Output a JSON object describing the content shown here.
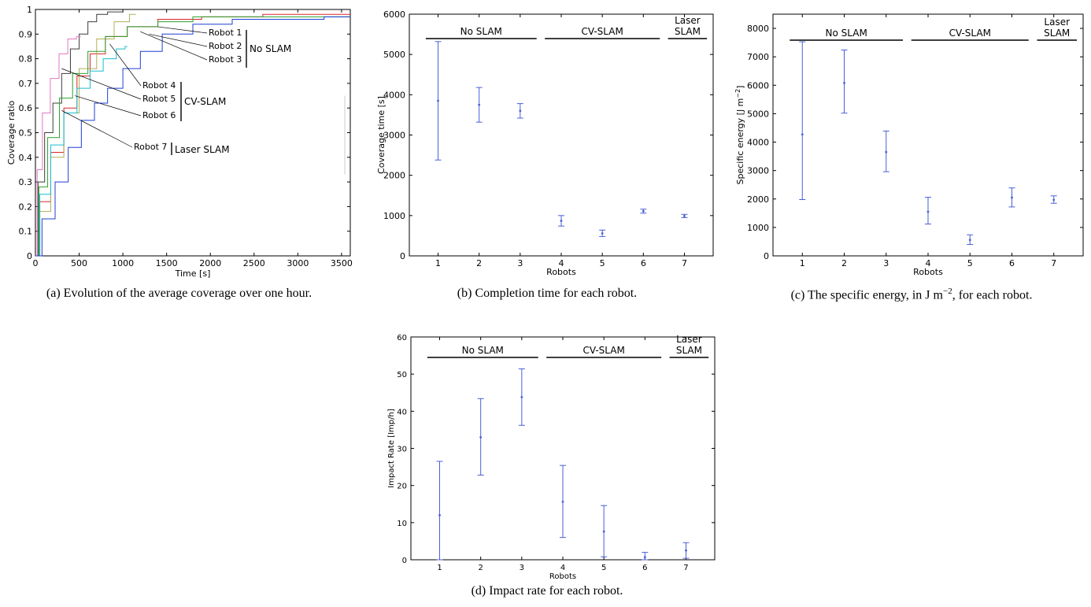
{
  "panels": [
    {
      "id": "a",
      "caption": "(a) Evolution of the average coverage over one hour.",
      "chart_data": {
        "type": "line",
        "xlabel": "Time [s]",
        "ylabel": "Coverage ratio",
        "xlim": [
          0,
          3600
        ],
        "ylim": [
          0,
          1
        ],
        "x_ticks": [
          "0",
          "500",
          "1000",
          "1500",
          "2000",
          "2500",
          "3000",
          "3500"
        ],
        "y_ticks": [
          "0",
          "0.1",
          "0.2",
          "0.3",
          "0.4",
          "0.5",
          "0.6",
          "0.7",
          "0.8",
          "0.9",
          "1"
        ],
        "grid": false,
        "series": [
          {
            "name": "Robot 1",
            "color": "#3c3c3c",
            "x": [
              0,
              60,
              150,
              250,
              350,
              450,
              550,
              650,
              750,
              900,
              1000
            ],
            "y": [
              0,
              0.3,
              0.5,
              0.62,
              0.74,
              0.84,
              0.9,
              0.95,
              0.98,
              0.99,
              0.99
            ]
          },
          {
            "name": "Robot 2",
            "color": "#d62728",
            "x": [
              0,
              100,
              250,
              400,
              550,
              700,
              900,
              1200,
              1600,
              2200,
              3000,
              3600
            ],
            "y": [
              0,
              0.22,
              0.42,
              0.6,
              0.73,
              0.82,
              0.89,
              0.93,
              0.96,
              0.97,
              0.98,
              0.98
            ]
          },
          {
            "name": "Robot 3",
            "color": "#b0b05a",
            "x": [
              0,
              100,
              250,
              400,
              600,
              800,
              1000,
              1150
            ],
            "y": [
              0,
              0.18,
              0.4,
              0.58,
              0.76,
              0.88,
              0.95,
              0.98
            ]
          },
          {
            "name": "Robot 4",
            "color": "#2ca02c",
            "x": [
              0,
              80,
              200,
              350,
              500,
              700,
              900,
              1200,
              1600,
              2000,
              2500,
              3600
            ],
            "y": [
              0,
              0.28,
              0.48,
              0.64,
              0.74,
              0.83,
              0.89,
              0.93,
              0.95,
              0.97,
              0.97,
              0.97
            ]
          },
          {
            "name": "Robot 5",
            "color": "#e377c2",
            "x": [
              0,
              40,
              120,
              220,
              320,
              420,
              520
            ],
            "y": [
              0,
              0.35,
              0.58,
              0.72,
              0.82,
              0.88,
              0.89
            ]
          },
          {
            "name": "Robot 6",
            "color": "#17becf",
            "x": [
              0,
              100,
              250,
              400,
              550,
              700,
              850,
              1000,
              1050
            ],
            "y": [
              0,
              0.25,
              0.45,
              0.58,
              0.68,
              0.75,
              0.8,
              0.84,
              0.85
            ]
          },
          {
            "name": "Robot 7",
            "color": "#1f3fd6",
            "x": [
              0,
              150,
              300,
              450,
              600,
              750,
              900,
              1100,
              1300,
              1600,
              2000,
              2500,
              3000,
              3600
            ],
            "y": [
              0,
              0.15,
              0.3,
              0.44,
              0.55,
              0.62,
              0.68,
              0.76,
              0.83,
              0.9,
              0.94,
              0.96,
              0.96,
              0.97
            ]
          }
        ],
        "annotations": [
          {
            "labels": [
              "Robot 1",
              "Robot 2",
              "Robot 3"
            ],
            "group": "No SLAM"
          },
          {
            "labels": [
              "Robot 4",
              "Robot 5",
              "Robot 6"
            ],
            "group": "CV-SLAM"
          },
          {
            "labels": [
              "Robot 7"
            ],
            "group": "Laser SLAM"
          }
        ]
      }
    },
    {
      "id": "b",
      "caption": "(b) Completion time for each robot.",
      "chart_data": {
        "type": "scatter",
        "errorbars": true,
        "xlabel": "Robots",
        "ylabel": "Coverage time [s]",
        "xlim": [
          0.3,
          7.7
        ],
        "ylim": [
          0,
          6000
        ],
        "x_ticks": [
          "1",
          "2",
          "3",
          "4",
          "5",
          "6",
          "7"
        ],
        "y_ticks": [
          "0",
          "1000",
          "2000",
          "3000",
          "4000",
          "5000",
          "6000"
        ],
        "color": "#4a5fd6",
        "points": [
          {
            "x": 1,
            "y": 3850,
            "low": 2380,
            "high": 5320
          },
          {
            "x": 2,
            "y": 3750,
            "low": 3320,
            "high": 4180
          },
          {
            "x": 3,
            "y": 3600,
            "low": 3420,
            "high": 3780
          },
          {
            "x": 4,
            "y": 870,
            "low": 740,
            "high": 1000
          },
          {
            "x": 5,
            "y": 560,
            "low": 480,
            "high": 640
          },
          {
            "x": 6,
            "y": 1110,
            "low": 1060,
            "high": 1160
          },
          {
            "x": 7,
            "y": 990,
            "low": 950,
            "high": 1030
          }
        ],
        "groups": [
          {
            "label": [
              "No SLAM"
            ],
            "x": [
              0.7,
              3.4
            ]
          },
          {
            "label": [
              "CV-SLAM"
            ],
            "x": [
              3.6,
              6.4
            ]
          },
          {
            "label": [
              "Laser",
              "SLAM"
            ],
            "x": [
              6.6,
              7.55
            ]
          }
        ]
      }
    },
    {
      "id": "c",
      "caption_parts": [
        "(c) The specific energy, in J m",
        "−2",
        ", for each robot."
      ],
      "chart_data": {
        "type": "scatter",
        "errorbars": true,
        "xlabel": "Robots",
        "ylabel": "Specific energy [J m",
        "ylabel_sup": "−2",
        "ylabel_end": "]",
        "xlim": [
          0.3,
          7.7
        ],
        "ylim": [
          0,
          8500
        ],
        "x_ticks": [
          "1",
          "2",
          "3",
          "4",
          "5",
          "6",
          "7"
        ],
        "y_ticks": [
          "0",
          "1000",
          "2000",
          "3000",
          "4000",
          "5000",
          "6000",
          "7000",
          "8000"
        ],
        "color": "#4a5fd6",
        "points": [
          {
            "x": 1,
            "y": 4270,
            "low": 1980,
            "high": 7530
          },
          {
            "x": 2,
            "y": 6080,
            "low": 5020,
            "high": 7240
          },
          {
            "x": 3,
            "y": 3650,
            "low": 2960,
            "high": 4390
          },
          {
            "x": 4,
            "y": 1550,
            "low": 1120,
            "high": 2060
          },
          {
            "x": 5,
            "y": 560,
            "low": 400,
            "high": 740
          },
          {
            "x": 6,
            "y": 2050,
            "low": 1720,
            "high": 2390
          },
          {
            "x": 7,
            "y": 1970,
            "low": 1850,
            "high": 2110
          }
        ],
        "groups": [
          {
            "label": [
              "No SLAM"
            ],
            "x": [
              0.7,
              3.4
            ]
          },
          {
            "label": [
              "CV-SLAM"
            ],
            "x": [
              3.6,
              6.4
            ]
          },
          {
            "label": [
              "Laser",
              "SLAM"
            ],
            "x": [
              6.6,
              7.55
            ]
          }
        ]
      }
    },
    {
      "id": "d",
      "caption": "(d) Impact rate for each robot.",
      "chart_data": {
        "type": "scatter",
        "errorbars": true,
        "xlabel": "Robots",
        "ylabel": "Impact Rate [Imp/h]",
        "xlim": [
          0.3,
          7.7
        ],
        "ylim": [
          0,
          60
        ],
        "x_ticks": [
          "1",
          "2",
          "3",
          "4",
          "5",
          "6",
          "7"
        ],
        "y_ticks": [
          "0",
          "10",
          "20",
          "30",
          "40",
          "50",
          "60"
        ],
        "color": "#4a5fd6",
        "points": [
          {
            "x": 1,
            "y": 12,
            "low": 0,
            "high": 26.5
          },
          {
            "x": 2,
            "y": 33,
            "low": 22.8,
            "high": 43.4
          },
          {
            "x": 3,
            "y": 43.8,
            "low": 36.2,
            "high": 51.4
          },
          {
            "x": 4,
            "y": 15.6,
            "low": 6,
            "high": 25.4
          },
          {
            "x": 5,
            "y": 7.6,
            "low": 0.8,
            "high": 14.6
          },
          {
            "x": 6,
            "y": 0.7,
            "low": 0,
            "high": 2
          },
          {
            "x": 7,
            "y": 2.5,
            "low": 0.4,
            "high": 4.6
          }
        ],
        "groups": [
          {
            "label": [
              "No SLAM"
            ],
            "x": [
              0.7,
              3.4
            ]
          },
          {
            "label": [
              "CV-SLAM"
            ],
            "x": [
              3.6,
              6.4
            ]
          },
          {
            "label": [
              "Laser",
              "SLAM"
            ],
            "x": [
              6.6,
              7.55
            ]
          }
        ]
      }
    }
  ]
}
